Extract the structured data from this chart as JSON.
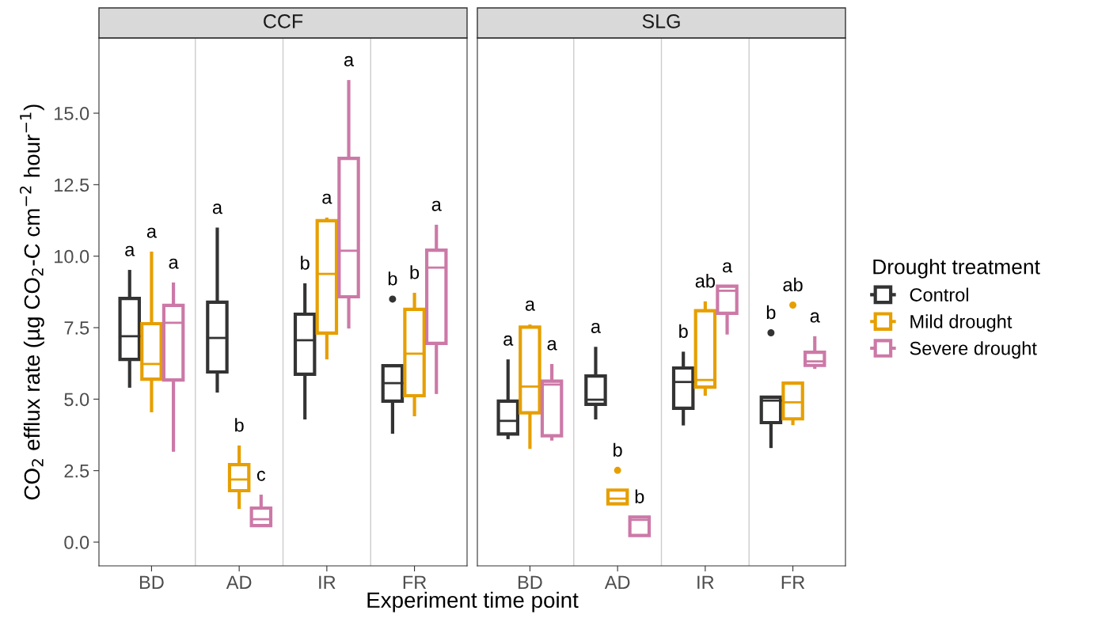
{
  "chart_data": [
    {
      "type": "box",
      "title": "CCF",
      "xlabel": "Experiment time point",
      "ylabel": "CO$_{2}$ efflux rate (µg CO$_{2}$-C cm$^{−2}$ hour$^{−1}$)",
      "categories": [
        "BD",
        "AD",
        "IR",
        "FR"
      ],
      "ylim": [
        -0.83,
        17.63
      ],
      "yticks": [
        {
          "value": 0,
          "label": "0.0"
        },
        {
          "value": 2.5,
          "label": "2.5"
        },
        {
          "value": 5,
          "label": "5.0"
        },
        {
          "value": 7.5,
          "label": "7.5"
        },
        {
          "value": 10,
          "label": "10.0"
        },
        {
          "value": 12.5,
          "label": "12.5"
        },
        {
          "value": 15,
          "label": "15.0"
        }
      ],
      "grid": "x",
      "legend": "right",
      "legend_title": "Drought treatment",
      "series": [
        {
          "name": "Control",
          "color": "#333333",
          "boxes": [
            {
              "low": 5.4,
              "q1": 6.39,
              "median": 7.2,
              "q3": 8.52,
              "high": 9.52
            },
            {
              "low": 5.23,
              "q1": 5.95,
              "median": 7.14,
              "q3": 8.39,
              "high": 11.0
            },
            {
              "low": 4.29,
              "q1": 5.87,
              "median": 7.06,
              "q3": 7.97,
              "high": 9.05
            },
            {
              "low": 3.79,
              "q1": 4.93,
              "median": 5.56,
              "q3": 6.17,
              "high": 6.17,
              "outliers": [
                8.5
              ]
            }
          ]
        },
        {
          "name": "Mild drought",
          "color": "#e69f00",
          "boxes": [
            {
              "low": 4.54,
              "q1": 5.7,
              "median": 6.23,
              "q3": 7.64,
              "high": 10.16
            },
            {
              "low": 1.16,
              "q1": 1.8,
              "median": 2.19,
              "q3": 2.71,
              "high": 3.38
            },
            {
              "low": 6.39,
              "q1": 7.31,
              "median": 9.38,
              "q3": 11.24,
              "high": 11.35
            },
            {
              "low": 4.4,
              "q1": 5.12,
              "median": 6.59,
              "q3": 8.14,
              "high": 8.72
            }
          ]
        },
        {
          "name": "Severe drought",
          "color": "#cc79a7",
          "boxes": [
            {
              "low": 3.16,
              "q1": 5.67,
              "median": 7.67,
              "q3": 8.28,
              "high": 9.08
            },
            {
              "low": 0.58,
              "q1": 0.58,
              "median": 0.8,
              "q3": 1.19,
              "high": 1.66
            },
            {
              "low": 7.47,
              "q1": 8.58,
              "median": 10.19,
              "q3": 13.42,
              "high": 16.16
            },
            {
              "low": 5.18,
              "q1": 6.95,
              "median": 9.6,
              "q3": 10.21,
              "high": 11.1
            }
          ]
        }
      ],
      "annotations": [
        "a",
        "a",
        "a",
        "a",
        "b",
        "c",
        "b",
        "a",
        "a",
        "b",
        "b",
        "a"
      ]
    },
    {
      "type": "box",
      "title": "SLG",
      "categories": [
        "BD",
        "AD",
        "IR",
        "FR"
      ],
      "ylim": [
        -0.83,
        17.63
      ],
      "tick_labels": "x",
      "grid": "x",
      "series": [
        {
          "color": "#333333",
          "boxes": [
            {
              "low": 3.6,
              "q1": 3.78,
              "median": 4.24,
              "q3": 4.93,
              "high": 6.39
            },
            {
              "low": 4.29,
              "q1": 4.82,
              "median": 4.98,
              "q3": 5.81,
              "high": 6.83
            },
            {
              "low": 4.08,
              "q1": 4.68,
              "median": 5.6,
              "q3": 6.09,
              "high": 6.66
            },
            {
              "low": 3.29,
              "q1": 4.18,
              "median": 4.95,
              "q3": 5.07,
              "high": 5.07,
              "outliers": [
                7.32
              ]
            }
          ]
        },
        {
          "color": "#e69f00",
          "boxes": [
            {
              "low": 3.26,
              "q1": 4.52,
              "median": 5.44,
              "q3": 7.52,
              "high": 7.61
            },
            {
              "low": 1.34,
              "q1": 1.34,
              "median": 1.52,
              "q3": 1.82,
              "high": 1.82,
              "outliers": [
                2.51
              ]
            },
            {
              "low": 5.12,
              "q1": 5.42,
              "median": 5.67,
              "q3": 8.09,
              "high": 8.42
            },
            {
              "low": 4.09,
              "q1": 4.31,
              "median": 4.89,
              "q3": 5.56,
              "high": 5.56,
              "outliers": [
                8.29
              ]
            }
          ]
        },
        {
          "color": "#cc79a7",
          "boxes": [
            {
              "low": 3.55,
              "q1": 3.72,
              "median": 5.51,
              "q3": 5.63,
              "high": 6.23
            },
            {
              "low": 0.23,
              "q1": 0.23,
              "median": 0.78,
              "q3": 0.88,
              "high": 0.88
            },
            {
              "low": 7.26,
              "q1": 8.0,
              "median": 8.79,
              "q3": 8.95,
              "high": 8.95
            },
            {
              "low": 6.06,
              "q1": 6.18,
              "median": 6.32,
              "q3": 6.64,
              "high": 7.2
            }
          ]
        }
      ],
      "annotations": [
        "a",
        "a",
        "a",
        "a",
        "b",
        "b",
        "b",
        "ab",
        "a",
        "b",
        "ab",
        "a"
      ]
    }
  ]
}
